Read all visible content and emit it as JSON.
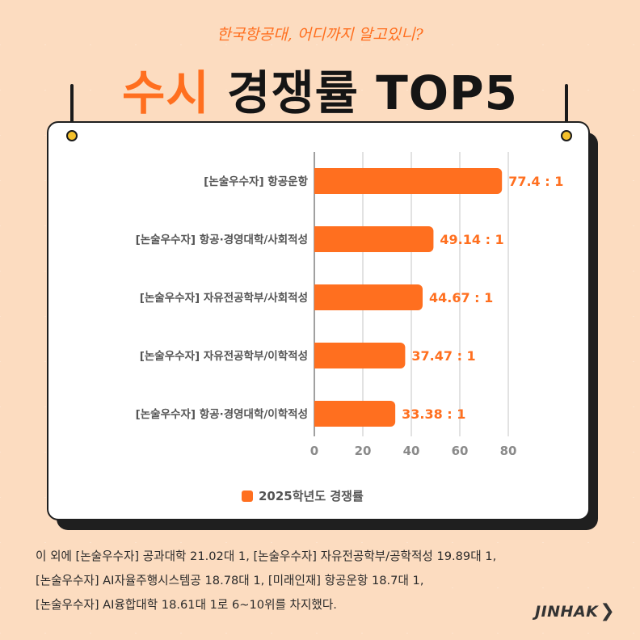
{
  "subtitle": "한국항공대, 어디까지 알고있니?",
  "title": {
    "accent": "수시",
    "rest": " 경쟁률 TOP5"
  },
  "chart_data": {
    "type": "bar",
    "orientation": "horizontal",
    "categories": [
      "[논술우수자] 항공운항",
      "[논술우수자] 항공·경영대학/사회적성",
      "[논술우수자] 자유전공학부/사회적성",
      "[논술우수자] 자유전공학부/이학적성",
      "[논술우수자] 항공·경영대학/이학적성"
    ],
    "series": [
      {
        "name": "2025학년도 경쟁률",
        "values": [
          77.4,
          49.14,
          44.67,
          37.47,
          33.38
        ],
        "color": "#ff6f1f"
      }
    ],
    "data_labels": [
      "77.4 : 1",
      "49.14 : 1",
      "44.67 : 1",
      "37.47 : 1",
      "33.38 : 1"
    ],
    "xticks": [
      "0",
      "20",
      "40",
      "60",
      "80"
    ],
    "xlim": [
      0,
      80
    ],
    "grid": true,
    "legend_position": "bottom"
  },
  "footer_lines": [
    "이 외에 [논술우수자] 공과대학 21.02대 1, [논술우수자] 자유전공학부/공학적성 19.89대 1,",
    "[논술우수자] AI자율주행시스템공 18.78대 1, [미래인재] 항공운항 18.7대 1,",
    "[논술우수자] AI융합대학 18.61대 1로 6~10위를 차지했다."
  ],
  "logo": {
    "text": "JINHAK",
    "icon": "chevron-right-icon"
  },
  "colors": {
    "accent": "#ff6f1f",
    "background": "#fcdcc0",
    "text": "#151515",
    "pin": "#f4c02a"
  }
}
